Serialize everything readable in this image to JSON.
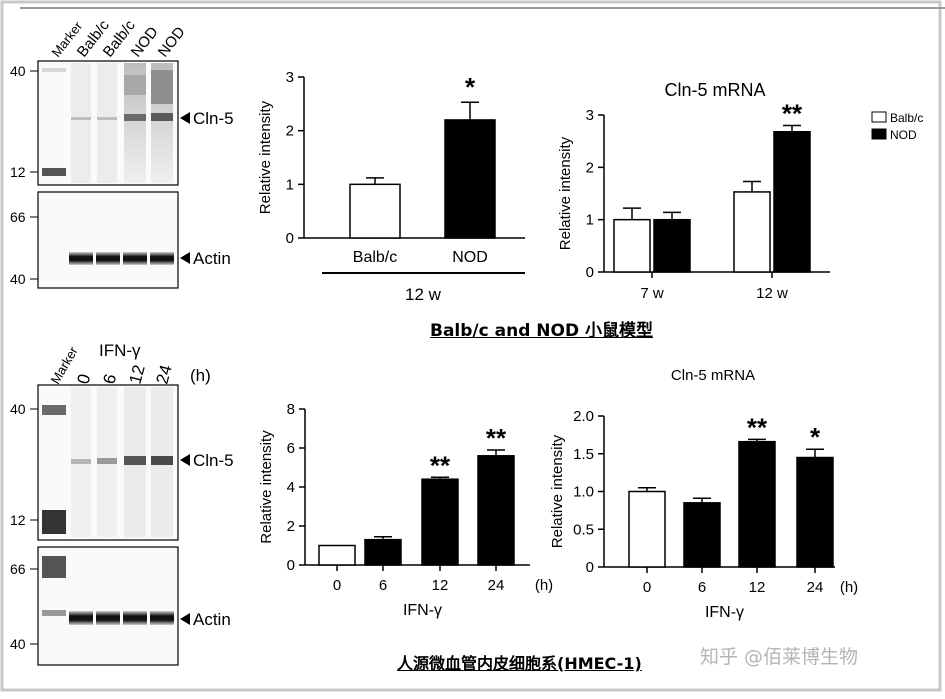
{
  "blot_top": {
    "lanes": [
      "Marker",
      "Balb/c",
      "Balb/c",
      "NOD",
      "NOD"
    ],
    "upper_markers": [
      "40",
      "12"
    ],
    "lower_markers": [
      "66",
      "40"
    ],
    "band_upper": "Cln-5",
    "band_lower": "Actin"
  },
  "blot_bottom": {
    "treatment": "IFN-γ",
    "lanes": [
      "Marker",
      "0",
      "6",
      "12",
      "24"
    ],
    "unit": "(h)",
    "upper_markers": [
      "40",
      "12"
    ],
    "lower_markers": [
      "66",
      "40"
    ],
    "band_upper": "Cln-5",
    "band_lower": "Actin"
  },
  "caption_top": "Balb/c and NOD 小鼠模型",
  "caption_bottom": "人源微血管内皮细胞系(HMEC-1)",
  "watermark": "知乎 @佰莱博生物",
  "colors": {
    "fill_black": "#000000",
    "fill_white": "#ffffff",
    "frame": "#c8c8c8"
  },
  "chart_data": [
    {
      "type": "bar",
      "title": "",
      "xlabel": "12 w",
      "ylabel": "Relative intensity",
      "ylim": [
        0,
        3
      ],
      "yticks": [
        "0",
        "1",
        "2",
        "3"
      ],
      "categories": [
        "Balb/c",
        "NOD"
      ],
      "values": [
        1.0,
        2.2
      ],
      "errors": [
        0.12,
        0.33
      ],
      "fills": [
        "white",
        "black"
      ],
      "annotations": [
        "",
        "*"
      ]
    },
    {
      "type": "bar",
      "title": "Cln-5 mRNA",
      "xlabel": "",
      "ylabel": "Relative intensity",
      "ylim": [
        0,
        3
      ],
      "yticks": [
        "0",
        "1",
        "2",
        "3"
      ],
      "categories": [
        "7 w",
        "12 w"
      ],
      "series": [
        {
          "name": "Balb/c",
          "values": [
            1.0,
            1.53
          ],
          "errors": [
            0.22,
            0.2
          ],
          "fill": "white"
        },
        {
          "name": "NOD",
          "values": [
            1.0,
            2.68
          ],
          "errors": [
            0.14,
            0.12
          ],
          "fill": "black"
        }
      ],
      "annotations": [
        "",
        "**"
      ],
      "legend": "top-right"
    },
    {
      "type": "bar",
      "title": "",
      "xlabel": "IFN-γ",
      "xunit": "(h)",
      "ylabel": "Relative intensity",
      "ylim": [
        0,
        8
      ],
      "yticks": [
        "0",
        "2",
        "4",
        "6",
        "8"
      ],
      "categories": [
        "0",
        "6",
        "12",
        "24"
      ],
      "values": [
        1.0,
        1.3,
        4.4,
        5.6
      ],
      "errors": [
        0.0,
        0.15,
        0.1,
        0.3
      ],
      "fills": [
        "white",
        "black",
        "black",
        "black"
      ],
      "annotations": [
        "",
        "",
        "**",
        "**"
      ]
    },
    {
      "type": "bar",
      "title": "Cln-5 mRNA",
      "xlabel": "IFN-γ",
      "xunit": "(h)",
      "ylabel": "Relative intensity",
      "ylim": [
        0,
        2.0
      ],
      "yticks": [
        "0",
        "0.5",
        "1.0",
        "1.5",
        "2.0"
      ],
      "categories": [
        "0",
        "6",
        "12",
        "24"
      ],
      "values": [
        1.0,
        0.85,
        1.66,
        1.45
      ],
      "errors": [
        0.05,
        0.06,
        0.03,
        0.11
      ],
      "fills": [
        "white",
        "black",
        "black",
        "black"
      ],
      "annotations": [
        "",
        "",
        "**",
        "*"
      ]
    }
  ]
}
